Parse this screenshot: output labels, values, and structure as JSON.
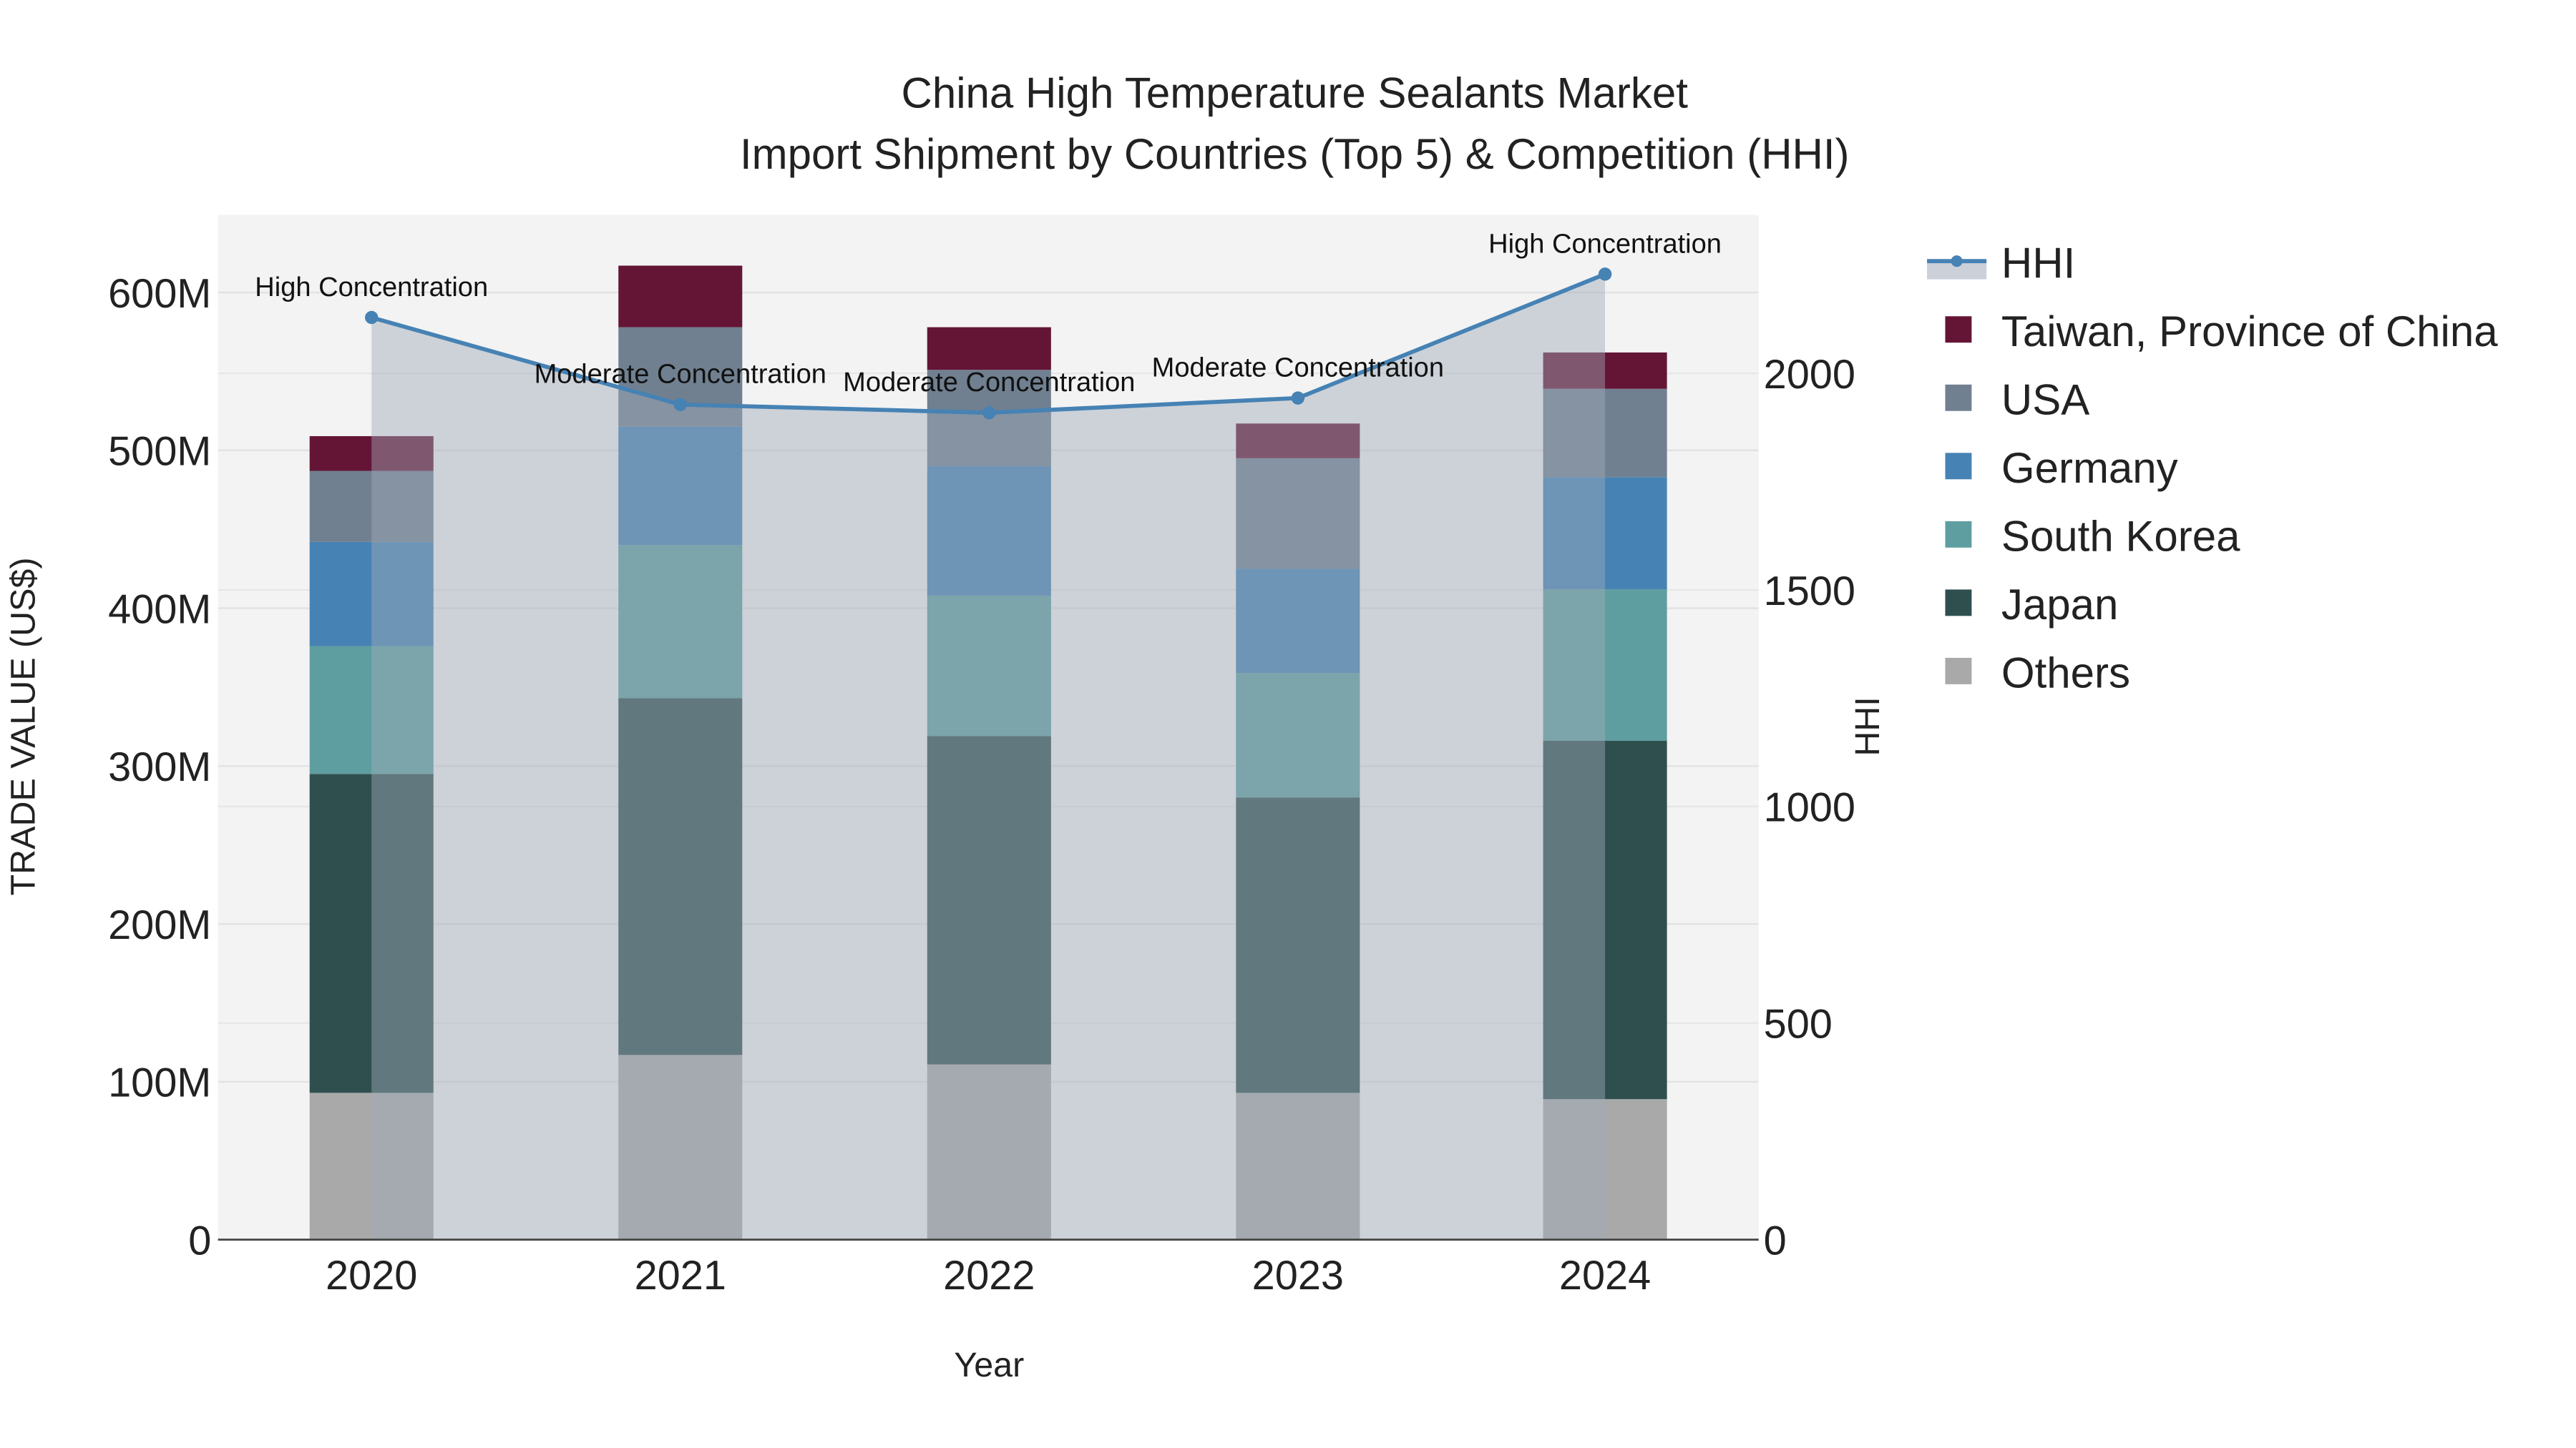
{
  "chart_data": {
    "type": "bar",
    "title_line1": "China High Temperature Sealants Market",
    "title_line2": "Import Shipment by Countries (Top 5) & Competition (HHI)",
    "xlabel": "Year",
    "ylabel": "TRADE VALUE (US$)",
    "y2label": "HHI",
    "categories": [
      "2020",
      "2021",
      "2022",
      "2023",
      "2024"
    ],
    "ylim": [
      0,
      650000000
    ],
    "y2lim": [
      0,
      2360
    ],
    "yticks": [
      0,
      100000000,
      200000000,
      300000000,
      400000000,
      500000000,
      600000000
    ],
    "ytick_labels": [
      "0",
      "100M",
      "200M",
      "300M",
      "400M",
      "500M",
      "600M"
    ],
    "y2ticks": [
      0,
      500,
      1000,
      1500,
      2000
    ],
    "y2tick_labels": [
      "0",
      "500",
      "1000",
      "1500",
      "2000"
    ],
    "grid": true,
    "legend_position": "right",
    "series": [
      {
        "name": "Others",
        "color": "#a9a9a9",
        "values": [
          93000000,
          117000000,
          111000000,
          93000000,
          89000000
        ]
      },
      {
        "name": "Japan",
        "color": "#2f4f4f",
        "values": [
          202000000,
          226000000,
          208000000,
          187000000,
          227000000
        ]
      },
      {
        "name": "South Korea",
        "color": "#5f9ea0",
        "values": [
          81000000,
          97000000,
          89000000,
          79000000,
          96000000
        ]
      },
      {
        "name": "Germany",
        "color": "#4682b4",
        "values": [
          66000000,
          75000000,
          82000000,
          66000000,
          71000000
        ]
      },
      {
        "name": "USA",
        "color": "#708090",
        "values": [
          45000000,
          63000000,
          61000000,
          70000000,
          56000000
        ]
      },
      {
        "name": "Taiwan, Province of China",
        "color": "#641535",
        "values": [
          22000000,
          39000000,
          27000000,
          22000000,
          23000000
        ]
      }
    ],
    "hhi": {
      "name": "HHI",
      "color": "#4682b4",
      "values": [
        2129,
        1928,
        1909,
        1943,
        2229
      ],
      "annotations": [
        "High Concentration",
        "Moderate Concentration",
        "Moderate Concentration",
        "Moderate Concentration",
        "High Concentration"
      ]
    },
    "legend_order": [
      "HHI",
      "Taiwan, Province of China",
      "USA",
      "Germany",
      "South Korea",
      "Japan",
      "Others"
    ]
  }
}
